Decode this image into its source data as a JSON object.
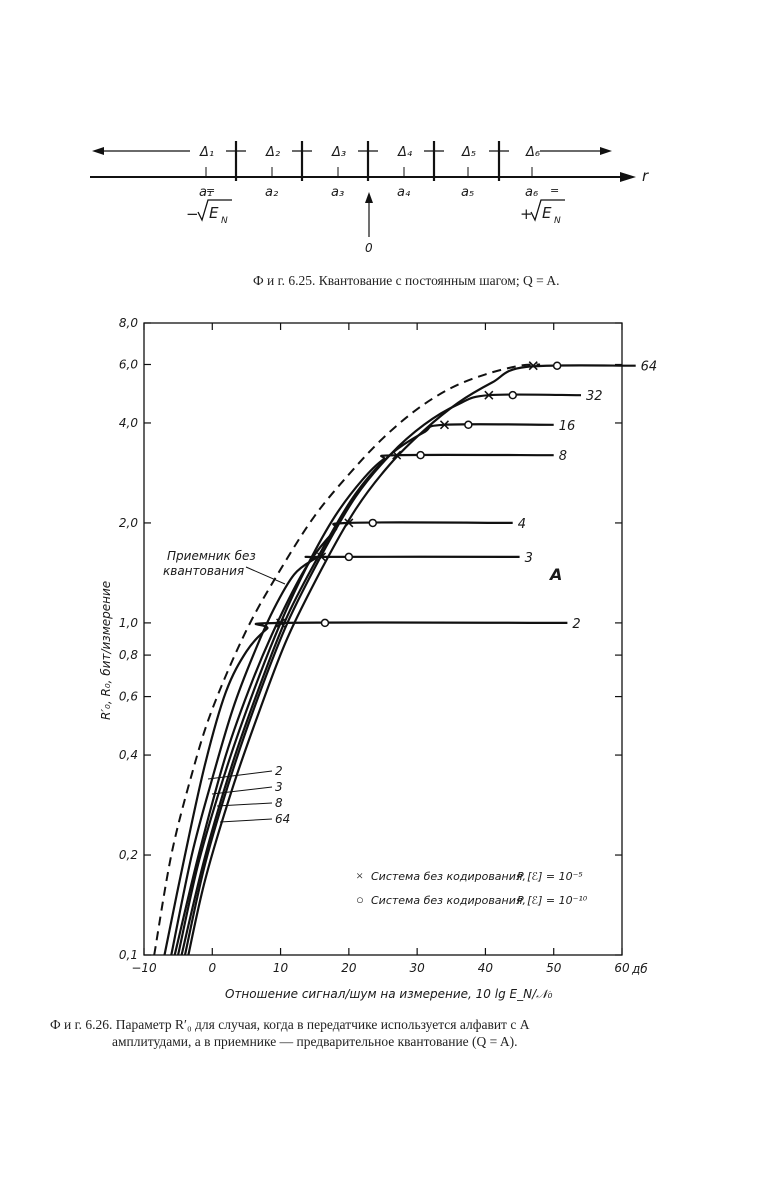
{
  "figure1": {
    "axis_label": "r",
    "intervals": [
      "Δ₁",
      "Δ₂",
      "Δ₃",
      "Δ₄",
      "Δ₅",
      "Δ₆"
    ],
    "levels": [
      "a₁",
      "a₂",
      "a₃",
      "a₄",
      "a₅",
      "a₆"
    ],
    "a1_eq": "=",
    "a6_eq": "=",
    "left_value": "−√E_N",
    "right_value": "+√E_N",
    "zero_label": "0",
    "caption": "Ф и г.  6.25. Квантование с постоянным шагом; Q = A."
  },
  "chart_data": {
    "type": "line",
    "ylabel": "R′₀, R₀, бит/измерение",
    "xlabel": "Отношение сигнал/шум на измерение, 10 lg E_N/𝒩₀",
    "x_unit": "дб",
    "y_scale": "log",
    "xlim": [
      -10,
      60
    ],
    "ylim": [
      0.1,
      8.0
    ],
    "x_ticks": [
      "−10",
      "0",
      "10",
      "20",
      "30",
      "40",
      "50",
      "60"
    ],
    "y_ticks": [
      {
        "v": 0.1,
        "label": "0,1"
      },
      {
        "v": 0.2,
        "label": "0,2"
      },
      {
        "v": 0.4,
        "label": "0,4"
      },
      {
        "v": 0.6,
        "label": "0,6"
      },
      {
        "v": 0.8,
        "label": "0,8"
      },
      {
        "v": 1.0,
        "label": "1,0"
      },
      {
        "v": 2.0,
        "label": "2,0"
      },
      {
        "v": 4.0,
        "label": "4,0"
      },
      {
        "v": 6.0,
        "label": "6,0"
      },
      {
        "v": 8.0,
        "label": "8,0"
      }
    ],
    "grid": false,
    "panel_label": "A",
    "dashed_label": "Приемник без квантования",
    "dashed_series": {
      "x": [
        -8.5,
        -6,
        -3,
        0,
        5,
        10,
        15,
        20,
        25,
        30,
        35,
        40,
        45,
        48
      ],
      "y": [
        0.1,
        0.2,
        0.35,
        0.55,
        0.95,
        1.45,
        2.1,
        2.8,
        3.6,
        4.4,
        5.1,
        5.6,
        5.95,
        6.0
      ]
    },
    "series": [
      {
        "name": "2",
        "x": [
          -7,
          -4,
          -1,
          2,
          5,
          8,
          10,
          52
        ],
        "y": [
          0.1,
          0.2,
          0.38,
          0.62,
          0.82,
          0.96,
          1.0,
          1.0
        ]
      },
      {
        "name": "3",
        "x": [
          -6,
          -3,
          0,
          3,
          6,
          9,
          12,
          15,
          16,
          45
        ],
        "y": [
          0.1,
          0.2,
          0.34,
          0.55,
          0.8,
          1.1,
          1.4,
          1.56,
          1.58,
          1.58
        ]
      },
      {
        "name": "4",
        "x": [
          -5.5,
          -2,
          2,
          6,
          10,
          14,
          18,
          20,
          44
        ],
        "y": [
          0.1,
          0.2,
          0.4,
          0.68,
          1.05,
          1.5,
          1.9,
          2.0,
          2.0
        ]
      },
      {
        "name": "8",
        "x": [
          -5,
          -2,
          2,
          6,
          10,
          14,
          18,
          22,
          25,
          27,
          50
        ],
        "y": [
          0.1,
          0.19,
          0.36,
          0.62,
          1.0,
          1.5,
          2.1,
          2.7,
          3.1,
          3.2,
          3.2
        ]
      },
      {
        "name": "16",
        "x": [
          -4.5,
          -1,
          3,
          7,
          11,
          16,
          21,
          26,
          31,
          34,
          50
        ],
        "y": [
          0.1,
          0.2,
          0.38,
          0.65,
          1.05,
          1.65,
          2.45,
          3.2,
          3.75,
          3.95,
          3.95
        ]
      },
      {
        "name": "32",
        "x": [
          -4,
          -1,
          3,
          7,
          11,
          16,
          21,
          26,
          31,
          36,
          40.5,
          54
        ],
        "y": [
          0.1,
          0.19,
          0.36,
          0.62,
          1.0,
          1.6,
          2.4,
          3.2,
          3.95,
          4.55,
          4.85,
          4.85
        ]
      },
      {
        "name": "64",
        "x": [
          -3.5,
          -1,
          3,
          7,
          11,
          16,
          21,
          26,
          31,
          36,
          41,
          46,
          62
        ],
        "y": [
          0.1,
          0.17,
          0.32,
          0.55,
          0.9,
          1.45,
          2.2,
          3.0,
          3.8,
          4.6,
          5.3,
          5.9,
          5.95
        ]
      }
    ],
    "markers_x": [
      {
        "x": 10,
        "y": 1.0
      },
      {
        "x": 16,
        "y": 1.58
      },
      {
        "x": 20,
        "y": 2.0
      },
      {
        "x": 27,
        "y": 3.2
      },
      {
        "x": 34,
        "y": 3.95
      },
      {
        "x": 40.5,
        "y": 4.85
      },
      {
        "x": 47,
        "y": 5.95
      }
    ],
    "markers_o": [
      {
        "x": 16.5,
        "y": 1.0
      },
      {
        "x": 20,
        "y": 1.58
      },
      {
        "x": 23.5,
        "y": 2.0
      },
      {
        "x": 30.5,
        "y": 3.2
      },
      {
        "x": 37.5,
        "y": 3.95
      },
      {
        "x": 44,
        "y": 4.85
      },
      {
        "x": 50.5,
        "y": 5.95
      }
    ],
    "left_labels": [
      "2",
      "3",
      "8",
      "64"
    ],
    "legend": [
      {
        "symbol": "×",
        "text": "Система без кодирования,",
        "cond": "P [ℰ] = 10⁻⁵"
      },
      {
        "symbol": "○",
        "text": "Система без кодирования,",
        "cond": "P [ℰ] = 10⁻¹⁰"
      }
    ]
  },
  "figure2": {
    "caption_line1": "Ф и г.  6.26. Параметр R′₀ для случая, когда в передатчике используется алфавит с A",
    "caption_line2": "амплитудами, а в приемнике — предварительное квантование (Q = A)."
  }
}
